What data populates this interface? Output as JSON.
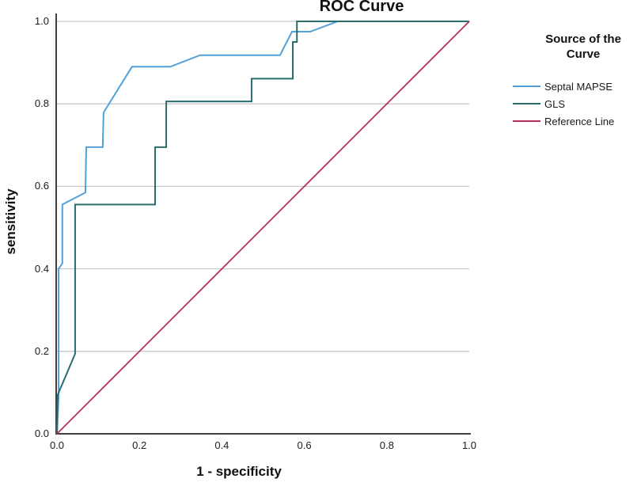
{
  "chart_data": {
    "type": "line",
    "title": "ROC Curve",
    "xlabel": "1 - specificity",
    "ylabel": "sensitivity",
    "xlim": [
      0.0,
      1.0
    ],
    "ylim": [
      0.0,
      1.0
    ],
    "xticks": [
      "0.0",
      "0.2",
      "0.4",
      "0.6",
      "0.8",
      "1.0"
    ],
    "yticks": [
      "0.0",
      "0.2",
      "0.4",
      "0.6",
      "0.8",
      "1.0"
    ],
    "grid": "horizontal gridlines only",
    "legend": {
      "title": "Source of the Curve",
      "position": "right",
      "items": [
        "Septal MAPSE",
        "GLS",
        "Reference Line"
      ]
    },
    "style": {
      "grid_color": "#c9c9c9",
      "axis_color": "#404040",
      "background": "#ffffff",
      "text_color": "#1a1a1a"
    },
    "series": [
      {
        "name": "Septal MAPSE",
        "color": "#539fd7",
        "width": 2,
        "points": [
          [
            0.0,
            0.0
          ],
          [
            0.004,
            0.09
          ],
          [
            0.004,
            0.4
          ],
          [
            0.013,
            0.413
          ],
          [
            0.013,
            0.556
          ],
          [
            0.069,
            0.585
          ],
          [
            0.071,
            0.695
          ],
          [
            0.111,
            0.695
          ],
          [
            0.113,
            0.779
          ],
          [
            0.182,
            0.89
          ],
          [
            0.275,
            0.89
          ],
          [
            0.347,
            0.918
          ],
          [
            0.541,
            0.918
          ],
          [
            0.57,
            0.975
          ],
          [
            0.614,
            0.975
          ],
          [
            0.681,
            1.0
          ],
          [
            1.0,
            1.0
          ]
        ]
      },
      {
        "name": "GLS",
        "color": "#2a6c6e",
        "width": 2,
        "points": [
          [
            0.0,
            0.0
          ],
          [
            0.002,
            0.095
          ],
          [
            0.044,
            0.194
          ],
          [
            0.044,
            0.556
          ],
          [
            0.238,
            0.556
          ],
          [
            0.238,
            0.695
          ],
          [
            0.265,
            0.695
          ],
          [
            0.265,
            0.806
          ],
          [
            0.472,
            0.806
          ],
          [
            0.472,
            0.861
          ],
          [
            0.572,
            0.861
          ],
          [
            0.572,
            0.95
          ],
          [
            0.582,
            0.95
          ],
          [
            0.582,
            1.0
          ],
          [
            1.0,
            1.0
          ]
        ]
      },
      {
        "name": "Reference Line",
        "color": "#b42b5d",
        "width": 1.7,
        "points": [
          [
            0.0,
            0.0
          ],
          [
            1.0,
            1.0
          ]
        ]
      }
    ]
  }
}
